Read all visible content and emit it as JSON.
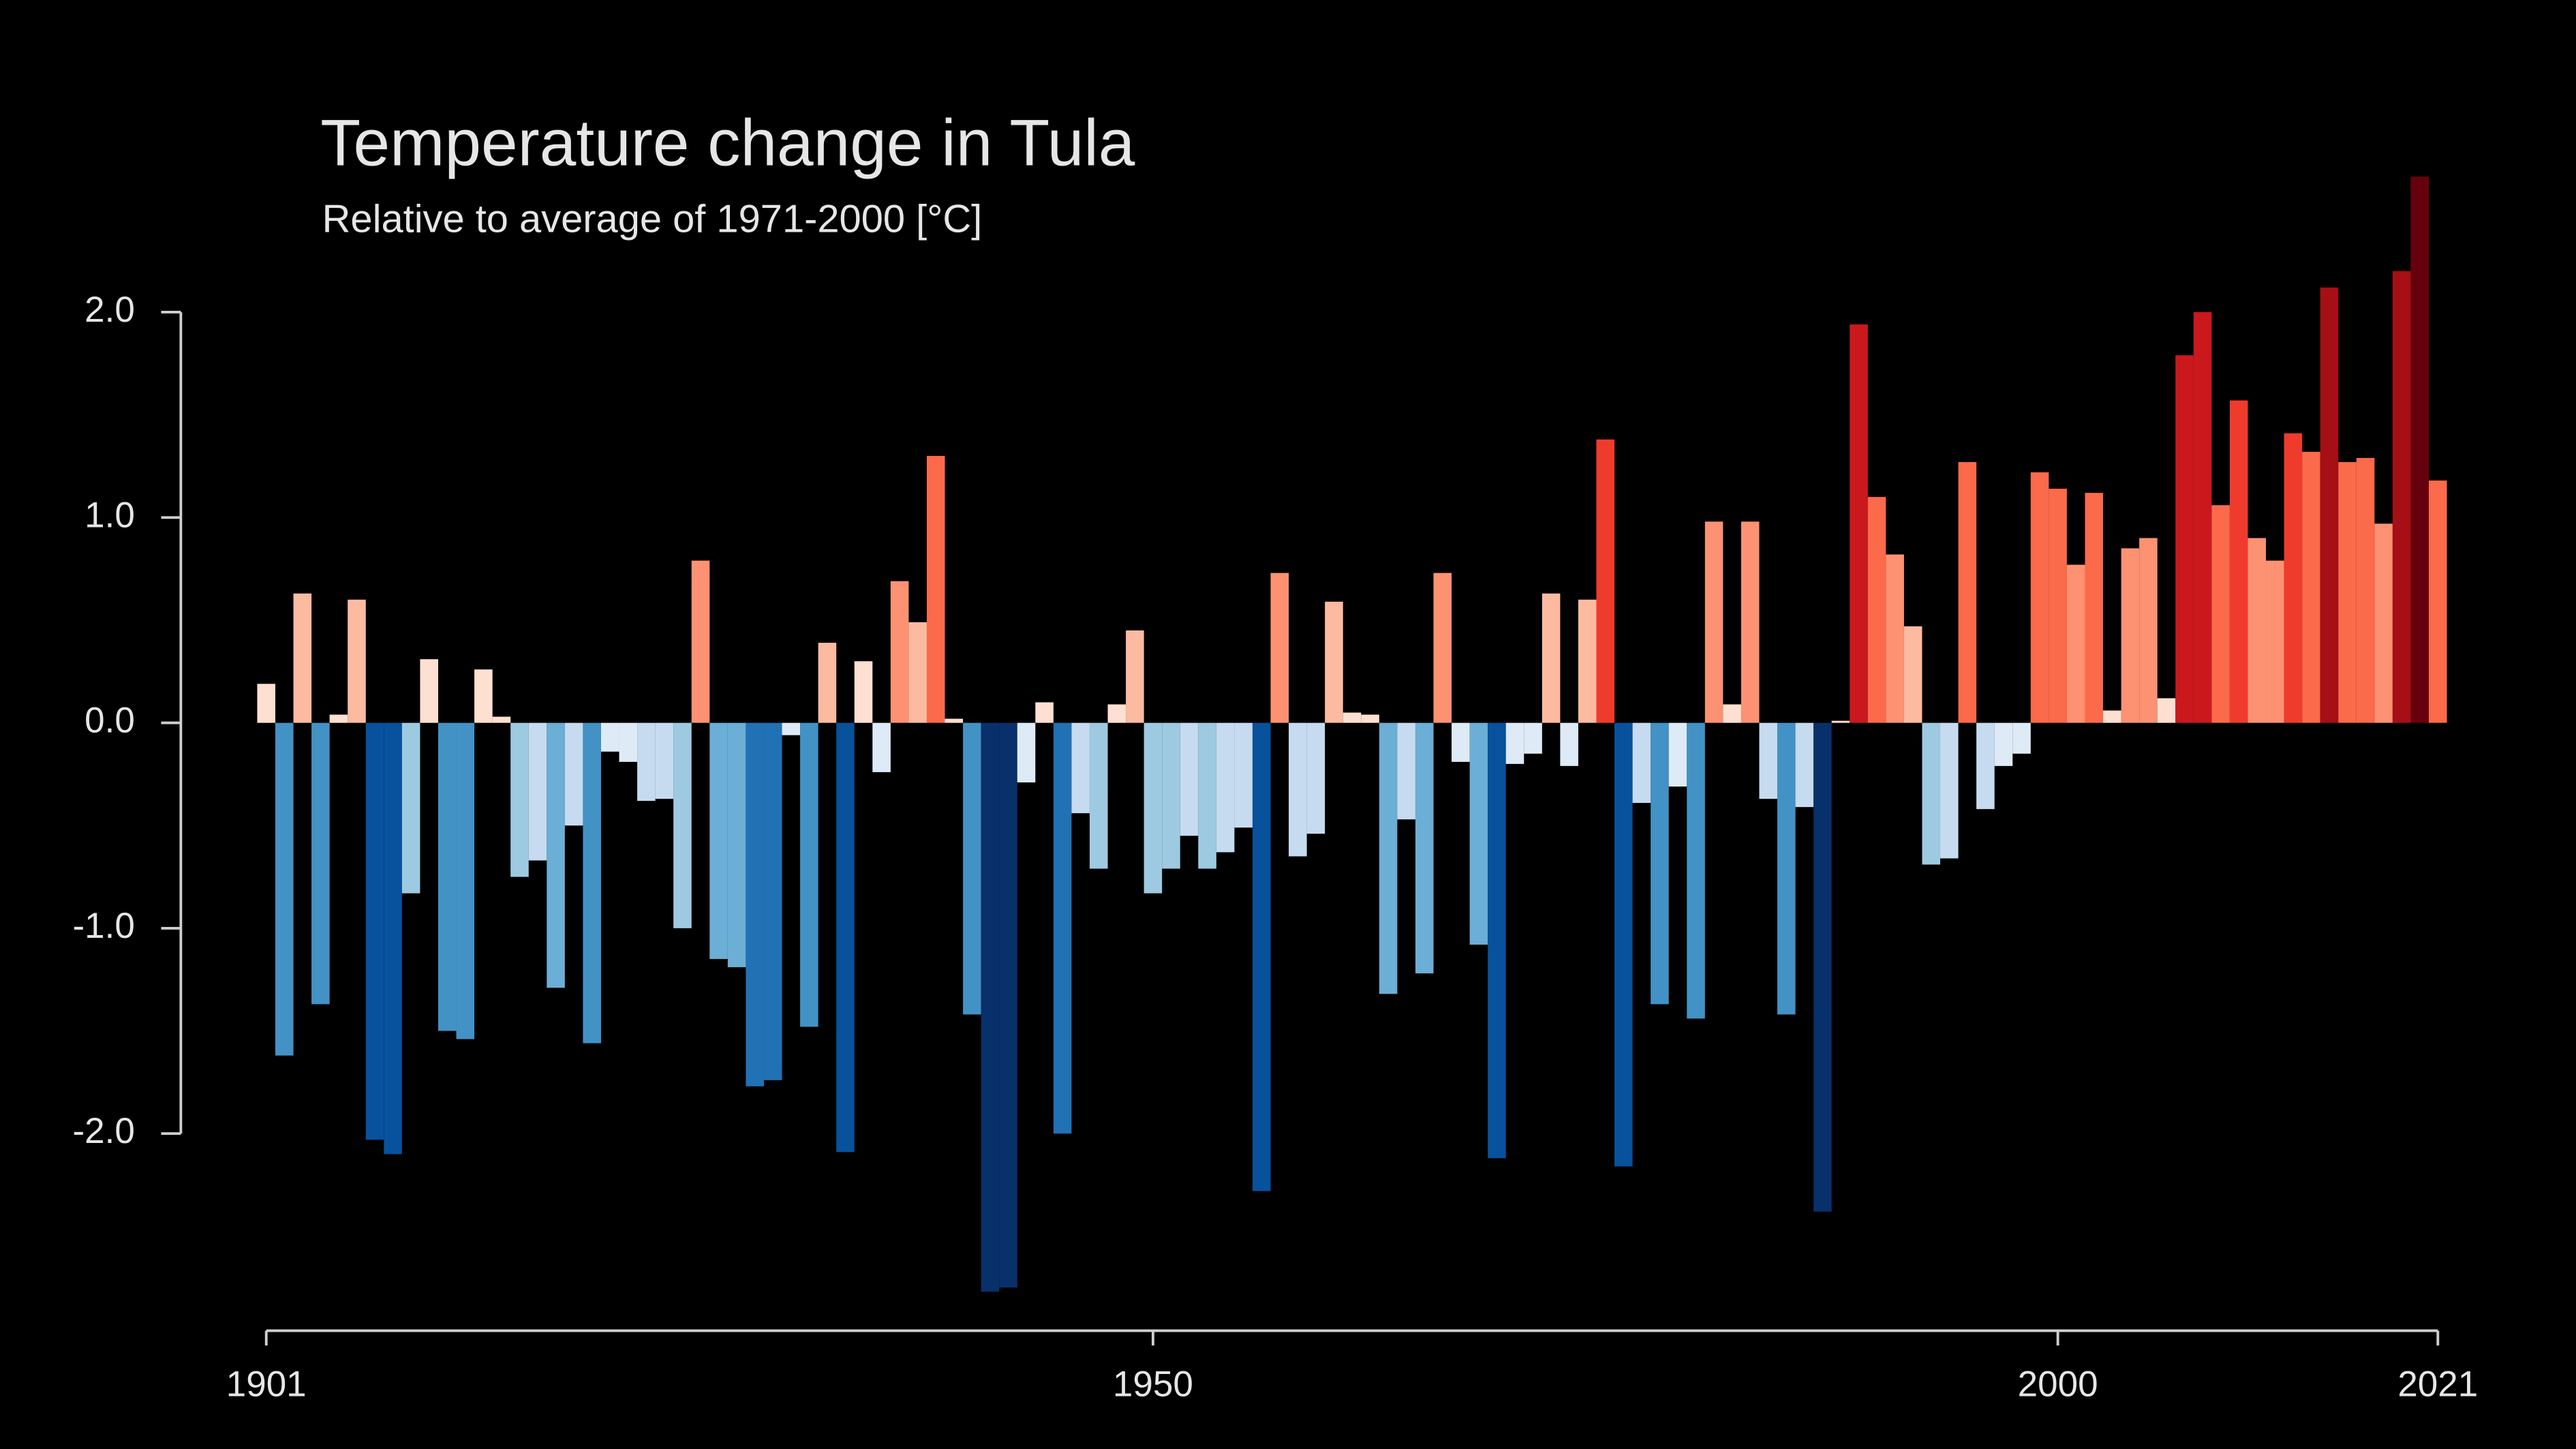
{
  "chart_data": {
    "type": "bar",
    "title": "Temperature change in Tula",
    "subtitle": "Relative to average of 1971-2000  [°C]",
    "x": [
      1901,
      1902,
      1903,
      1904,
      1905,
      1906,
      1907,
      1908,
      1909,
      1910,
      1911,
      1912,
      1913,
      1914,
      1915,
      1916,
      1917,
      1918,
      1919,
      1920,
      1921,
      1922,
      1923,
      1924,
      1925,
      1926,
      1927,
      1928,
      1929,
      1930,
      1931,
      1932,
      1933,
      1934,
      1935,
      1936,
      1937,
      1938,
      1939,
      1940,
      1941,
      1942,
      1943,
      1944,
      1945,
      1946,
      1947,
      1948,
      1949,
      1950,
      1951,
      1952,
      1953,
      1954,
      1955,
      1956,
      1957,
      1958,
      1959,
      1960,
      1961,
      1962,
      1963,
      1964,
      1965,
      1966,
      1967,
      1968,
      1969,
      1970,
      1971,
      1972,
      1973,
      1974,
      1975,
      1976,
      1977,
      1978,
      1979,
      1980,
      1981,
      1982,
      1983,
      1984,
      1985,
      1986,
      1987,
      1988,
      1989,
      1990,
      1991,
      1992,
      1993,
      1994,
      1995,
      1996,
      1997,
      1998,
      1999,
      2000,
      2001,
      2002,
      2003,
      2004,
      2005,
      2006,
      2007,
      2008,
      2009,
      2010,
      2011,
      2012,
      2013,
      2014,
      2015,
      2016,
      2017,
      2018,
      2019,
      2020,
      2021
    ],
    "values": [
      0.19,
      -1.62,
      0.63,
      -1.37,
      0.04,
      0.6,
      -2.03,
      -2.1,
      -0.83,
      0.31,
      -1.5,
      -1.54,
      0.26,
      0.03,
      -0.75,
      -0.67,
      -1.29,
      -0.5,
      -1.56,
      -0.14,
      -0.19,
      -0.38,
      -0.37,
      -1.0,
      0.79,
      -1.15,
      -1.19,
      -1.77,
      -1.74,
      -0.06,
      -1.48,
      0.39,
      -2.09,
      0.3,
      -0.24,
      0.69,
      0.49,
      1.3,
      0.02,
      -1.42,
      -2.77,
      -2.75,
      -0.29,
      0.1,
      -2.0,
      -0.44,
      -0.71,
      0.09,
      0.45,
      -0.83,
      -0.71,
      -0.55,
      -0.71,
      -0.63,
      -0.51,
      -2.28,
      0.73,
      -0.65,
      -0.54,
      0.59,
      0.05,
      0.04,
      -1.32,
      -0.47,
      -1.22,
      0.73,
      -0.19,
      -1.08,
      -2.12,
      -0.2,
      -0.15,
      0.63,
      -0.21,
      0.6,
      1.38,
      -2.16,
      -0.39,
      -1.37,
      -0.31,
      -1.44,
      0.98,
      0.09,
      0.98,
      -0.37,
      -1.42,
      -0.41,
      -2.38,
      0.01,
      1.94,
      1.1,
      0.82,
      0.47,
      -0.69,
      -0.66,
      1.27,
      -0.42,
      -0.21,
      -0.15,
      1.22,
      1.14,
      0.77,
      1.12,
      0.06,
      0.85,
      0.9,
      0.12,
      1.79,
      2.0,
      1.06,
      1.57,
      0.9,
      0.79,
      1.41,
      1.32,
      2.12,
      1.27,
      1.29,
      0.97,
      2.2,
      2.66,
      1.18
    ],
    "colormap": [
      "#08306b",
      "#08519c",
      "#2171b5",
      "#4292c6",
      "#6baed6",
      "#9ecae1",
      "#c6dbef",
      "#deebf7",
      "#fee0d2",
      "#fcbba1",
      "#fc9272",
      "#fb6a4a",
      "#ef3b2c",
      "#cb181d",
      "#a50f15",
      "#67000d"
    ],
    "color_range": [
      -2.7,
      2.7
    ],
    "xlim": [
      1901,
      2021
    ],
    "xticks": [
      1901,
      1950,
      2000,
      2021
    ],
    "ylim": [
      -3,
      3
    ],
    "yticks": [
      {
        "value": 2,
        "label": "2.0"
      },
      {
        "value": 1,
        "label": "1.0"
      },
      {
        "value": 0,
        "label": "0.0"
      },
      {
        "value": -1,
        "label": "-1.0"
      },
      {
        "value": -2,
        "label": "-2.0"
      }
    ]
  }
}
